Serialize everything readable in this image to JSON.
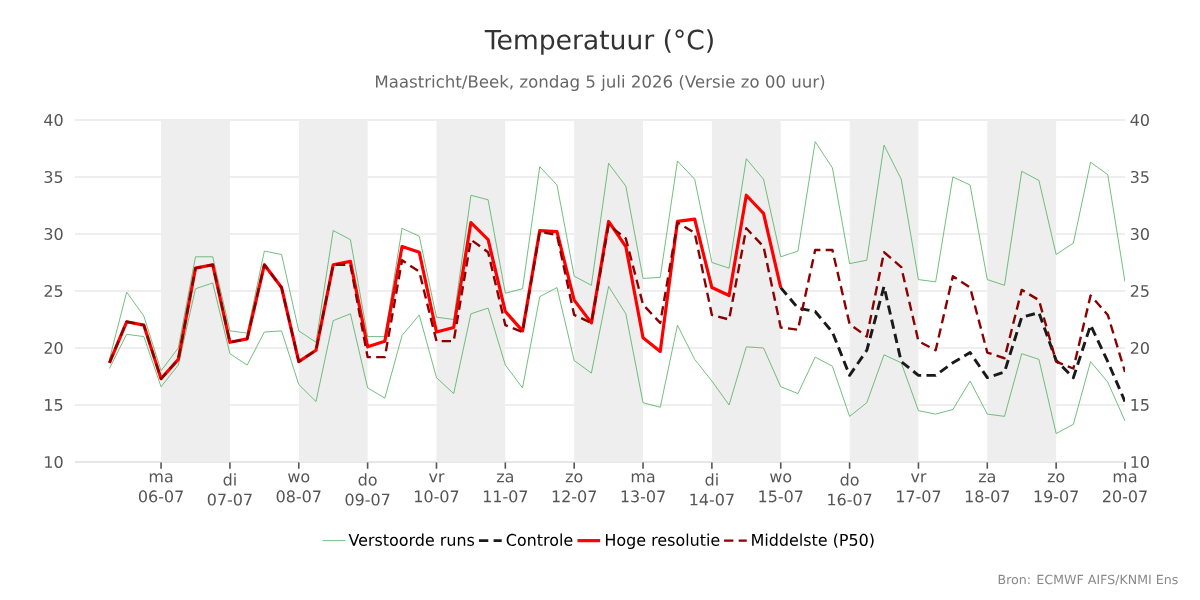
{
  "chart_data": {
    "type": "line",
    "title": "Temperatuur (°C)",
    "subtitle": "Maastricht/Beek, zondag  5 juli 2026 (Versie zo 00 uur)",
    "annotations": [
      "Bron: ECMWF AIFS/KNMI Ens"
    ],
    "x": [
      "2026-07-05T06:00",
      "2026-07-05T12:00",
      "2026-07-05T18:00",
      "2026-07-06T00:00",
      "2026-07-06T06:00",
      "2026-07-06T12:00",
      "2026-07-06T18:00",
      "2026-07-07T00:00",
      "2026-07-07T06:00",
      "2026-07-07T12:00",
      "2026-07-07T18:00",
      "2026-07-08T00:00",
      "2026-07-08T06:00",
      "2026-07-08T12:00",
      "2026-07-08T18:00",
      "2026-07-09T00:00",
      "2026-07-09T06:00",
      "2026-07-09T12:00",
      "2026-07-09T18:00",
      "2026-07-10T00:00",
      "2026-07-10T06:00",
      "2026-07-10T12:00",
      "2026-07-10T18:00",
      "2026-07-11T00:00",
      "2026-07-11T06:00",
      "2026-07-11T12:00",
      "2026-07-11T18:00",
      "2026-07-12T00:00",
      "2026-07-12T06:00",
      "2026-07-12T12:00",
      "2026-07-12T18:00",
      "2026-07-13T00:00",
      "2026-07-13T06:00",
      "2026-07-13T12:00",
      "2026-07-13T18:00",
      "2026-07-14T00:00",
      "2026-07-14T06:00",
      "2026-07-14T12:00",
      "2026-07-14T18:00",
      "2026-07-15T00:00",
      "2026-07-15T06:00",
      "2026-07-15T12:00",
      "2026-07-15T18:00",
      "2026-07-16T00:00",
      "2026-07-16T06:00",
      "2026-07-16T12:00",
      "2026-07-16T18:00",
      "2026-07-17T00:00",
      "2026-07-17T06:00",
      "2026-07-17T12:00",
      "2026-07-17T18:00",
      "2026-07-18T00:00",
      "2026-07-18T06:00",
      "2026-07-18T12:00",
      "2026-07-18T18:00",
      "2026-07-19T00:00",
      "2026-07-19T06:00",
      "2026-07-19T12:00",
      "2026-07-19T18:00",
      "2026-07-20T00:00"
    ],
    "series": [
      {
        "name": "Verstoorde runs",
        "color": "#4fae5f",
        "values": [
          19.0,
          24.9,
          22.8,
          18.0,
          20.0,
          28.0,
          28.0,
          21.5,
          21.3,
          28.5,
          28.2,
          21.5,
          20.5,
          30.3,
          29.5,
          21.0,
          21.0,
          30.5,
          29.8,
          22.7,
          22.5,
          33.4,
          33.0,
          24.8,
          25.2,
          35.9,
          34.3,
          26.3,
          25.5,
          36.2,
          34.2,
          26.1,
          26.2,
          36.4,
          34.8,
          27.5,
          27.0,
          36.6,
          34.8,
          28.0,
          28.5,
          38.1,
          35.8,
          27.4,
          27.7,
          37.8,
          34.8,
          26.0,
          25.8,
          35.0,
          34.3,
          26.0,
          25.5,
          35.5,
          34.7,
          28.2,
          29.2,
          36.3,
          35.2,
          25.8
        ]
      },
      {
        "color": "#4fae5f",
        "values": [
          18.2,
          21.2,
          21.0,
          16.6,
          18.5,
          25.2,
          25.7,
          19.5,
          18.5,
          21.4,
          21.5,
          16.8,
          15.3,
          22.4,
          23.0,
          16.5,
          15.6,
          21.1,
          22.9,
          17.4,
          16.0,
          23.0,
          23.5,
          18.5,
          16.5,
          24.5,
          25.3,
          18.9,
          17.8,
          25.4,
          23.0,
          15.2,
          14.8,
          22.0,
          19.0,
          17.1,
          15.0,
          20.1,
          20.0,
          16.6,
          16.0,
          19.2,
          18.4,
          14.0,
          15.2,
          19.4,
          18.7,
          14.5,
          14.2,
          14.6,
          17.1,
          14.2,
          14.0,
          19.5,
          19.0,
          12.5,
          13.3,
          18.8,
          17.0,
          13.6
        ]
      },
      {
        "name": "Controle",
        "color": "#1a1a1a",
        "line_style": "dashed",
        "values": [
          null,
          null,
          null,
          null,
          null,
          null,
          null,
          null,
          null,
          null,
          null,
          null,
          null,
          null,
          null,
          null,
          null,
          null,
          null,
          null,
          null,
          null,
          null,
          null,
          null,
          null,
          null,
          null,
          null,
          null,
          null,
          null,
          null,
          null,
          null,
          null,
          null,
          null,
          null,
          25.3,
          23.5,
          23.2,
          21.4,
          17.6,
          19.8,
          25.4,
          18.8,
          17.6,
          17.6,
          18.7,
          19.6,
          17.4,
          17.9,
          22.7,
          23.1,
          18.9,
          17.4,
          22.0,
          18.8,
          15.3
        ]
      },
      {
        "name": "Hoge resolutie",
        "color": "#ff0000",
        "line_style": "solid",
        "values": [
          18.7,
          22.3,
          22.0,
          17.3,
          19.0,
          27.0,
          27.3,
          20.5,
          20.8,
          27.3,
          25.3,
          18.8,
          19.8,
          27.3,
          27.6,
          20.1,
          20.6,
          28.9,
          28.4,
          21.4,
          21.8,
          31.0,
          29.5,
          23.2,
          21.5,
          30.3,
          30.2,
          24.2,
          22.2,
          31.1,
          28.9,
          20.9,
          19.7,
          31.1,
          31.3,
          25.3,
          24.6,
          33.4,
          31.8,
          25.3,
          null,
          null,
          null,
          null,
          null,
          null,
          null,
          null,
          null,
          null,
          null,
          null,
          null,
          null,
          null,
          null,
          null,
          null,
          null,
          null
        ]
      },
      {
        "name": "Middelste (P50)",
        "color": "#8b0000",
        "line_style": "dashed",
        "values": [
          18.7,
          22.3,
          22.0,
          17.3,
          19.0,
          27.0,
          27.3,
          20.5,
          20.8,
          27.3,
          25.3,
          18.8,
          19.8,
          27.3,
          27.3,
          19.2,
          19.2,
          27.7,
          26.7,
          20.6,
          20.6,
          29.5,
          28.4,
          22.0,
          21.4,
          30.2,
          29.9,
          22.9,
          22.2,
          30.8,
          29.6,
          23.8,
          22.2,
          31.0,
          30.1,
          22.9,
          22.5,
          30.5,
          28.9,
          21.8,
          21.6,
          28.6,
          28.6,
          22.1,
          21.0,
          28.4,
          27.1,
          20.6,
          19.8,
          26.3,
          25.3,
          19.6,
          19.1,
          25.1,
          24.2,
          18.8,
          18.2,
          24.6,
          22.9,
          17.9
        ]
      }
    ],
    "xlim": [
      "2026-07-04T18:00",
      "2026-07-20T00:00"
    ],
    "xticks": [
      {
        "value": "2026-07-06",
        "label": "ma 06-07"
      },
      {
        "value": "2026-07-07",
        "label": "di 07-07"
      },
      {
        "value": "2026-07-08",
        "label": "wo 08-07"
      },
      {
        "value": "2026-07-09",
        "label": "do 09-07"
      },
      {
        "value": "2026-07-10",
        "label": "vr 10-07"
      },
      {
        "value": "2026-07-11",
        "label": "za 11-07"
      },
      {
        "value": "2026-07-12",
        "label": "zo 12-07"
      },
      {
        "value": "2026-07-13",
        "label": "ma 13-07"
      },
      {
        "value": "2026-07-14",
        "label": "di 14-07"
      },
      {
        "value": "2026-07-15",
        "label": "wo 15-07"
      },
      {
        "value": "2026-07-16",
        "label": "do 16-07"
      },
      {
        "value": "2026-07-17",
        "label": "vr 17-07"
      },
      {
        "value": "2026-07-18",
        "label": "za 18-07"
      },
      {
        "value": "2026-07-19",
        "label": "zo 19-07"
      },
      {
        "value": "2026-07-20",
        "label": "ma 20-07"
      }
    ],
    "ylim": [
      10,
      40
    ],
    "yticks": [
      10,
      15,
      20,
      25,
      30,
      35,
      40
    ],
    "y2lim": [
      10,
      40
    ],
    "y2ticks": [
      10,
      15,
      20,
      25,
      30,
      35,
      40
    ],
    "bands": [
      {
        "axis": "x",
        "from": "2026-07-06",
        "to": "2026-07-07",
        "color": "#eeeeee"
      },
      {
        "axis": "x",
        "from": "2026-07-08",
        "to": "2026-07-09",
        "color": "#eeeeee"
      },
      {
        "axis": "x",
        "from": "2026-07-10",
        "to": "2026-07-11",
        "color": "#eeeeee"
      },
      {
        "axis": "x",
        "from": "2026-07-12",
        "to": "2026-07-13",
        "color": "#eeeeee"
      },
      {
        "axis": "x",
        "from": "2026-07-14",
        "to": "2026-07-15",
        "color": "#eeeeee"
      },
      {
        "axis": "x",
        "from": "2026-07-16",
        "to": "2026-07-17",
        "color": "#eeeeee"
      },
      {
        "axis": "x",
        "from": "2026-07-18",
        "to": "2026-07-19",
        "color": "#eeeeee"
      }
    ],
    "grid": "y",
    "legend": "bottom",
    "marker": "none"
  }
}
